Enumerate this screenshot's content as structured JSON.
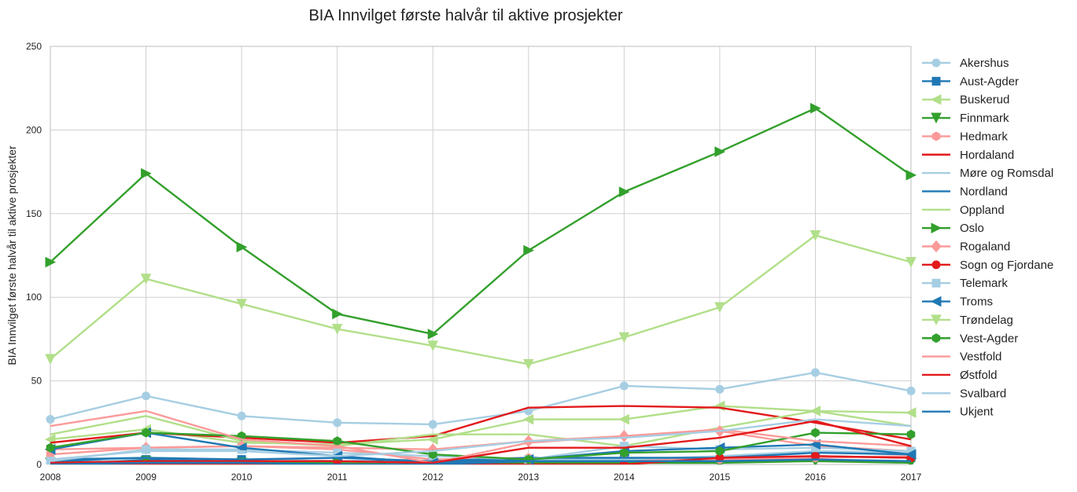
{
  "chart_data": {
    "type": "line",
    "title": "BIA Innvilget første halvår til aktive prosjekter",
    "xlabel": "",
    "ylabel": "BIA Innvilget første halvår til aktive prosjekter",
    "x": [
      2008,
      2009,
      2010,
      2011,
      2012,
      2013,
      2014,
      2015,
      2016,
      2017
    ],
    "xlim": [
      2008,
      2017
    ],
    "ylim": [
      0,
      250
    ],
    "yticks": [
      0,
      50,
      100,
      150,
      200,
      250
    ],
    "grid": true,
    "legend_position": "right-outside",
    "series": [
      {
        "name": "Akershus",
        "color": "#a6cee3",
        "marker": "circle",
        "values": [
          27,
          41,
          29,
          25,
          24,
          32,
          47,
          45,
          55,
          44
        ]
      },
      {
        "name": "Aust-Agder",
        "color": "#1f78b4",
        "marker": "square",
        "values": [
          2,
          3,
          3,
          2,
          2,
          2,
          3,
          3,
          5,
          4
        ]
      },
      {
        "name": "Buskerud",
        "color": "#b2df8a",
        "marker": "triangle-left",
        "values": [
          15,
          21,
          13,
          12,
          15,
          27,
          27,
          35,
          32,
          31
        ]
      },
      {
        "name": "Finnmark",
        "color": "#33a02c",
        "marker": "triangle-down",
        "values": [
          1,
          2,
          1,
          1,
          1,
          1,
          1,
          1,
          2,
          1
        ]
      },
      {
        "name": "Hedmark",
        "color": "#fb9a99",
        "marker": "hexagon",
        "values": [
          6,
          10,
          11,
          9,
          3,
          4,
          3,
          3,
          4,
          5
        ]
      },
      {
        "name": "Hordaland",
        "color": "#e31a1c",
        "marker": "none",
        "values": [
          13,
          19,
          16,
          13,
          17,
          34,
          35,
          34,
          25,
          15
        ]
      },
      {
        "name": "Møre og Romsdal",
        "color": "#a6cee3",
        "marker": "none",
        "values": [
          0,
          4,
          3,
          2,
          1,
          3,
          3,
          5,
          8,
          7
        ]
      },
      {
        "name": "Nordland",
        "color": "#1f78b4",
        "marker": "none",
        "values": [
          3,
          4,
          3,
          4,
          2,
          4,
          4,
          4,
          7,
          6
        ]
      },
      {
        "name": "Oppland",
        "color": "#b2df8a",
        "marker": "none",
        "values": [
          18,
          29,
          14,
          11,
          18,
          18,
          11,
          22,
          32,
          23
        ]
      },
      {
        "name": "Oslo",
        "color": "#33a02c",
        "marker": "triangle-right",
        "values": [
          121,
          174,
          130,
          90,
          78,
          128,
          163,
          187,
          213,
          173
        ]
      },
      {
        "name": "Rogaland",
        "color": "#fb9a99",
        "marker": "diamond",
        "values": [
          9,
          10,
          11,
          10,
          9,
          14,
          17,
          20,
          11,
          8
        ]
      },
      {
        "name": "Sogn og Fjordane",
        "color": "#e31a1c",
        "marker": "circle",
        "values": [
          0,
          0,
          0,
          0,
          0,
          0,
          0,
          4,
          5,
          4
        ]
      },
      {
        "name": "Telemark",
        "color": "#a6cee3",
        "marker": "square",
        "values": [
          2,
          9,
          9,
          7,
          5,
          3,
          11,
          9,
          10,
          8
        ]
      },
      {
        "name": "Troms",
        "color": "#1f78b4",
        "marker": "triangle-left",
        "values": [
          9,
          19,
          10,
          5,
          1,
          3,
          8,
          10,
          12,
          6
        ]
      },
      {
        "name": "Trøndelag",
        "color": "#b2df8a",
        "marker": "triangle-down",
        "values": [
          63,
          111,
          96,
          81,
          71,
          60,
          76,
          94,
          137,
          121
        ]
      },
      {
        "name": "Vest-Agder",
        "color": "#33a02c",
        "marker": "hexagon",
        "values": [
          10,
          19,
          17,
          14,
          6,
          3,
          7,
          8,
          19,
          18
        ]
      },
      {
        "name": "Vestfold",
        "color": "#fb9a99",
        "marker": "none",
        "values": [
          23,
          32,
          15,
          11,
          1,
          13,
          17,
          21,
          14,
          11
        ]
      },
      {
        "name": "Østfold",
        "color": "#e31a1c",
        "marker": "none",
        "values": [
          1,
          2,
          2,
          2,
          1,
          10,
          10,
          16,
          26,
          11
        ]
      },
      {
        "name": "Svalbard",
        "color": "#a6cee3",
        "marker": "none",
        "values": [
          3,
          8,
          8,
          5,
          8,
          14,
          16,
          20,
          27,
          23
        ]
      },
      {
        "name": "Ukjent",
        "color": "#1f78b4",
        "marker": "none",
        "values": [
          0,
          1,
          1,
          0,
          0,
          2,
          2,
          2,
          3,
          2
        ]
      }
    ]
  }
}
